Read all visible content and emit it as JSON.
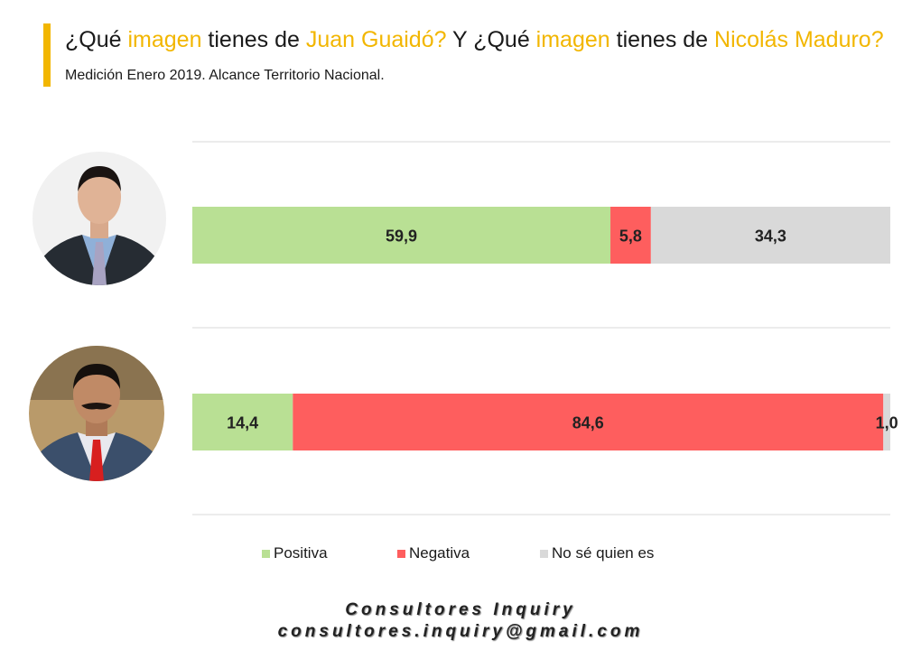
{
  "title": {
    "p1": "¿Qué ",
    "p2": "imagen",
    "p3": " tienes de ",
    "p4": "Juan Guaidó?",
    "p5": " Y ¿Qué ",
    "p6": "imagen",
    "p7": " tienes de ",
    "p8": "Nicolás Maduro?",
    "sub": " Medición Enero 2019. Alcance Territorio Nacional."
  },
  "colors": {
    "accent": "#f2b600",
    "positiva": "#b9e094",
    "negativa": "#fe5e5e",
    "no_se": "#d9d9d9"
  },
  "chart_data": {
    "type": "bar",
    "orientation": "horizontal",
    "stacked": "100%",
    "grid": true,
    "legend_position": "bottom",
    "categories": [
      "Juan Guaidó",
      "Nicolás Maduro"
    ],
    "series": [
      {
        "name": "Positiva",
        "values": [
          59.9,
          14.4
        ],
        "labels": [
          "59,9",
          "14,4"
        ]
      },
      {
        "name": "Negativa",
        "values": [
          5.8,
          84.6
        ],
        "labels": [
          "5,8",
          "84,6"
        ]
      },
      {
        "name": "No sé quien es",
        "values": [
          34.3,
          1.0
        ],
        "labels": [
          "34,3",
          "1,0"
        ]
      }
    ]
  },
  "footer": {
    "line1": "Consultores Inquiry",
    "line2": "consultores.inquiry@gmail.com"
  }
}
